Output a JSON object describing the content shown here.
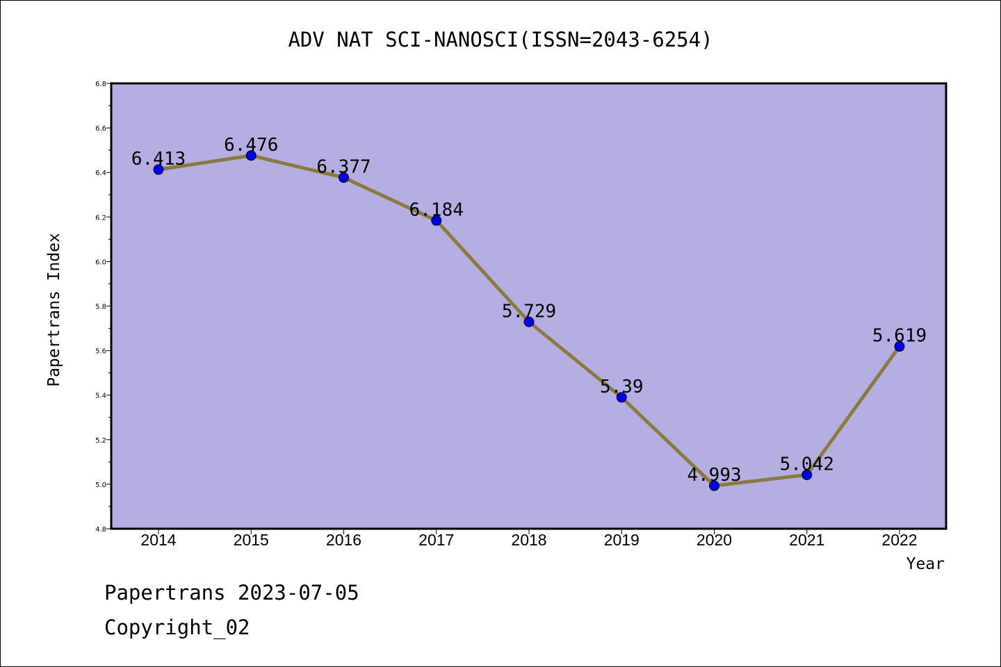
{
  "chart_data": {
    "type": "line",
    "title": "ADV NAT SCI-NANOSCI(ISSN=2043-6254)",
    "xlabel": "Year",
    "ylabel": "Papertrans Index",
    "categories": [
      "2014",
      "2015",
      "2016",
      "2017",
      "2018",
      "2019",
      "2020",
      "2021",
      "2022"
    ],
    "values": [
      6.413,
      6.476,
      6.377,
      6.184,
      5.729,
      5.39,
      4.993,
      5.042,
      5.619
    ],
    "data_labels": [
      "6.413",
      "6.476",
      "6.377",
      "6.184",
      "5.729",
      "5.39",
      "4.993",
      "5.042",
      "5.619"
    ],
    "ylim": [
      4.8,
      6.8
    ],
    "yticks": [
      "4.8",
      "5.0",
      "5.2",
      "5.4",
      "5.6",
      "5.8",
      "6.0",
      "6.2",
      "6.4",
      "6.6",
      "6.8"
    ],
    "grid": false,
    "legend": "none",
    "colors": {
      "plot_background": "#b5aee2",
      "line": "#8b7a3e",
      "marker": "#0000ee"
    }
  },
  "footer": {
    "line1": "Papertrans 2023-07-05",
    "line2": "Copyright_02"
  }
}
